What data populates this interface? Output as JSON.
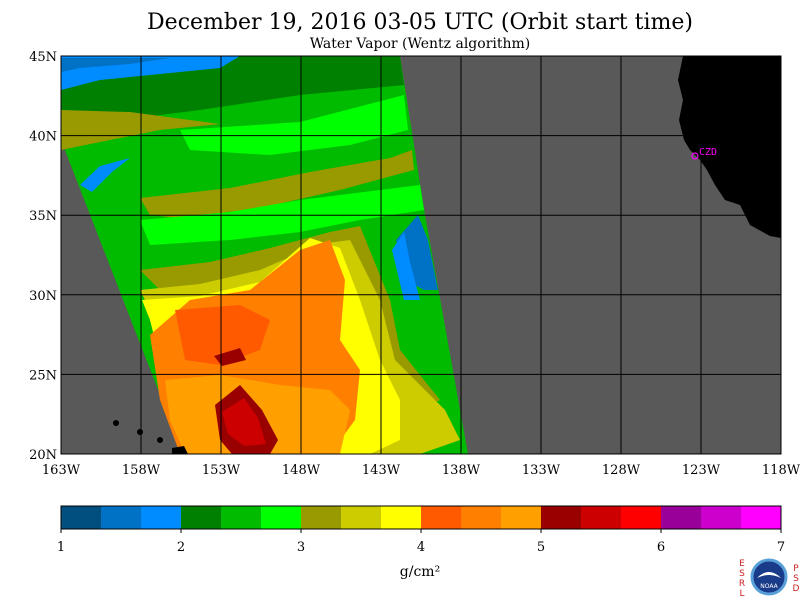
{
  "title": "December 19, 2016  03-05 UTC  (Orbit start time)",
  "subtitle": "Water Vapor (Wentz algorithm)",
  "map": {
    "lon_labels": [
      "163W",
      "158W",
      "153W",
      "148W",
      "143W",
      "138W",
      "133W",
      "128W",
      "123W",
      "118W"
    ],
    "lat_labels": [
      "45N",
      "40N",
      "35N",
      "30N",
      "25N",
      "20N"
    ],
    "marker_label": "CZD",
    "colors": {
      "land": "#000000",
      "ocean_no_data": "#595959",
      "grid": "#000000",
      "marker": "#ff00ff"
    }
  },
  "colorbar": {
    "unit": "g/cm²",
    "tick_labels": [
      "1",
      "2",
      "3",
      "4",
      "5",
      "6",
      "7"
    ],
    "colors": [
      "#004f7e",
      "#0072c6",
      "#008bff",
      "#008000",
      "#00bb00",
      "#00ff00",
      "#999900",
      "#cccc00",
      "#ffff00",
      "#ff5a00",
      "#ff8000",
      "#ffa000",
      "#990000",
      "#cc0000",
      "#ff0000",
      "#990099",
      "#cc00cc",
      "#ff00ff"
    ]
  },
  "logo": {
    "left_letters": [
      "E",
      "S",
      "R",
      "L"
    ],
    "right_letters": [
      "P",
      "S",
      "D"
    ],
    "badge": "NOAA"
  }
}
